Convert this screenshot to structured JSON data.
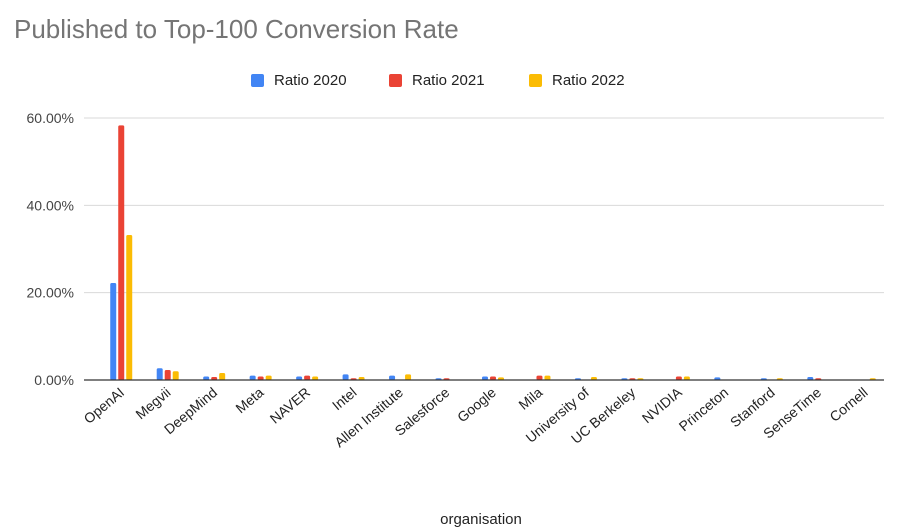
{
  "chart_data": {
    "type": "bar",
    "title": "Published to Top-100 Conversion Rate",
    "xlabel": "organisation",
    "ylabel": "",
    "ylim": [
      0,
      60
    ],
    "y_ticks": [
      "0.00%",
      "20.00%",
      "40.00%",
      "60.00%"
    ],
    "y_tick_values": [
      0,
      20,
      40,
      60
    ],
    "grid": true,
    "legend_position": "top-center",
    "categories": [
      "OpenAI",
      "Megvii",
      "DeepMind",
      "Meta",
      "NAVER",
      "Intel",
      "Allen Institute",
      "Salesforce",
      "Google",
      "Mila",
      "University of",
      "UC Berkeley",
      "NVIDIA",
      "Princeton",
      "Stanford",
      "SenseTime",
      "Cornell"
    ],
    "series": [
      {
        "name": "Ratio 2020",
        "color": "#4285f4",
        "values": [
          22.2,
          2.7,
          0.8,
          1.0,
          0.8,
          1.3,
          1.0,
          0.4,
          0.8,
          0.0,
          0.4,
          0.4,
          0.0,
          0.6,
          0.4,
          0.7,
          0.0
        ]
      },
      {
        "name": "Ratio 2021",
        "color": "#ea4335",
        "values": [
          58.3,
          2.3,
          0.7,
          0.8,
          1.0,
          0.4,
          0.0,
          0.4,
          0.8,
          1.0,
          0.0,
          0.4,
          0.8,
          0.0,
          0.0,
          0.4,
          0.0
        ]
      },
      {
        "name": "Ratio 2022",
        "color": "#fbbc04",
        "values": [
          33.2,
          2.0,
          1.6,
          1.0,
          0.8,
          0.7,
          1.3,
          0.0,
          0.6,
          1.0,
          0.7,
          0.4,
          0.8,
          0.0,
          0.4,
          0.0,
          0.4
        ]
      }
    ]
  }
}
